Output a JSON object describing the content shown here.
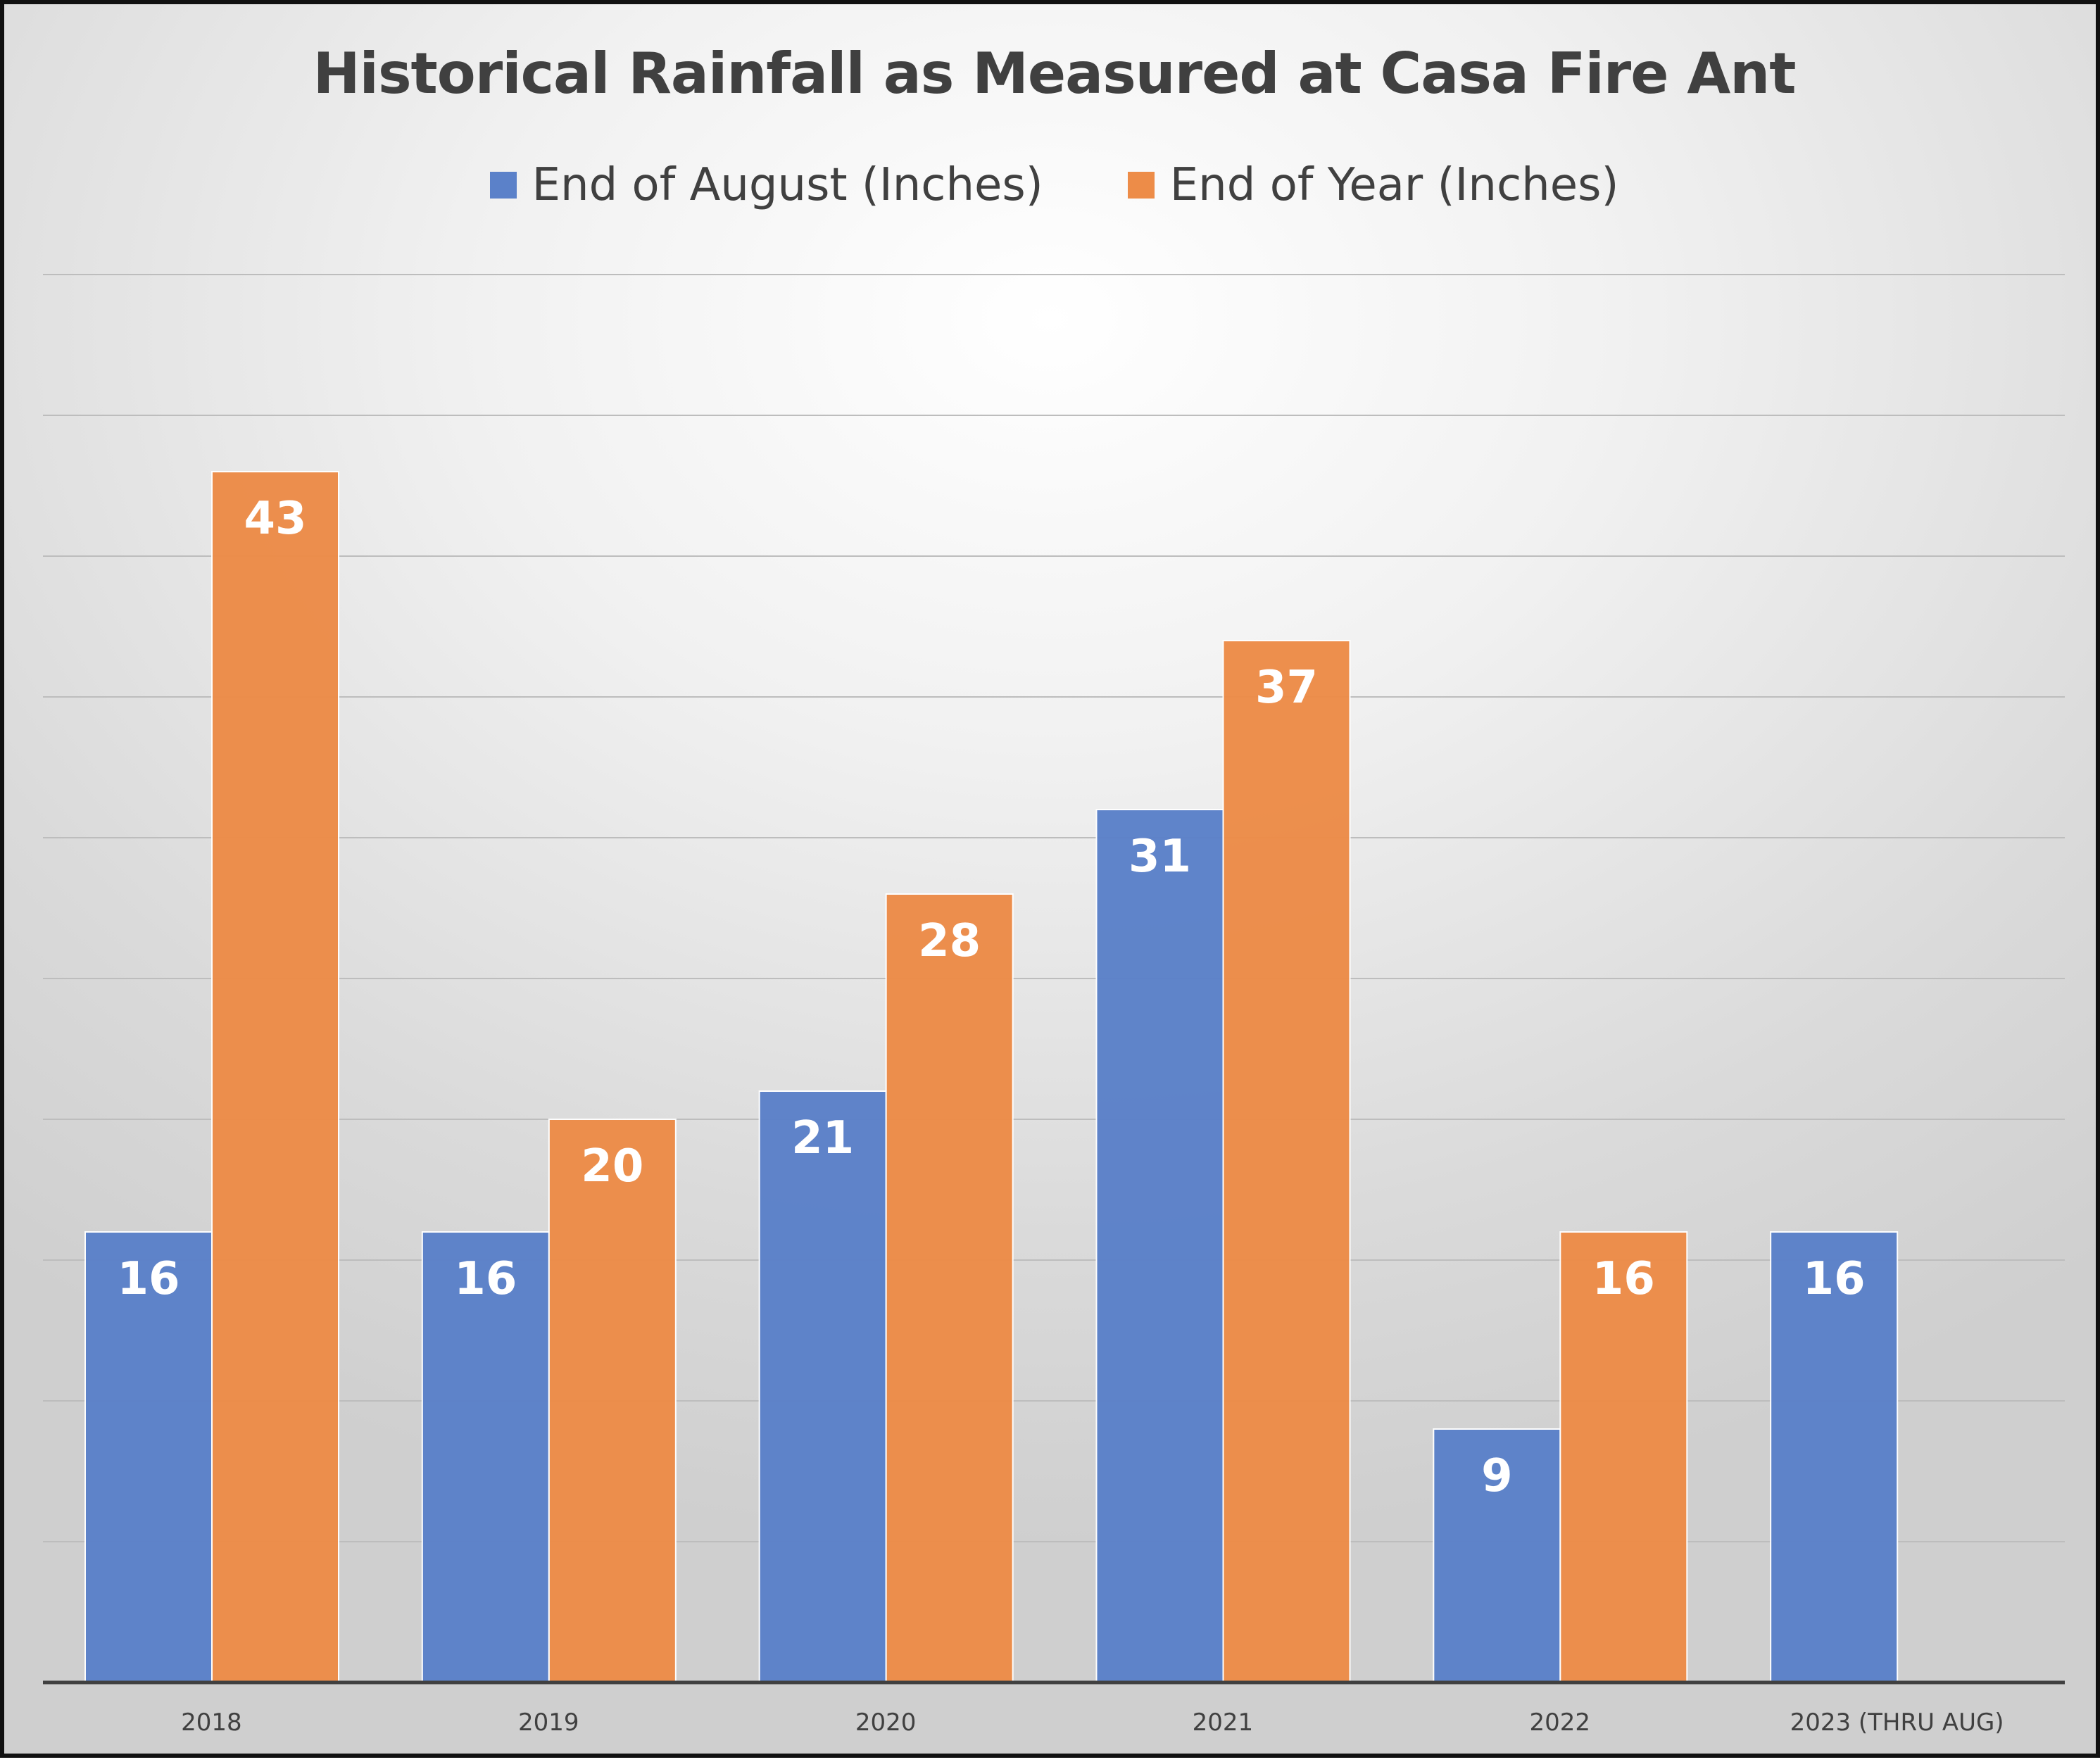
{
  "colors": {
    "series_1": "#5b81c9",
    "series_2": "#ed8c48",
    "gridline": "#bdbdbd",
    "axis": "#404040",
    "data_label": "#ffffff",
    "text": "#404040"
  },
  "chart_data": {
    "type": "bar",
    "title": "Historical Rainfall as Measured at Casa Fire Ant",
    "xlabel": "",
    "ylabel": "",
    "categories": [
      "2018",
      "2019",
      "2020",
      "2021",
      "2022",
      "2023 (THRU AUG)"
    ],
    "series": [
      {
        "name": "End of August (Inches)",
        "values": [
          16,
          16,
          21,
          31,
          9,
          16
        ]
      },
      {
        "name": "End of Year (Inches)",
        "values": [
          43,
          20,
          28,
          37,
          16,
          null
        ]
      }
    ],
    "ylim": [
      0,
      50
    ],
    "y_gridline_step": 5,
    "grid": true,
    "legend_position": "top",
    "data_labels": true
  }
}
